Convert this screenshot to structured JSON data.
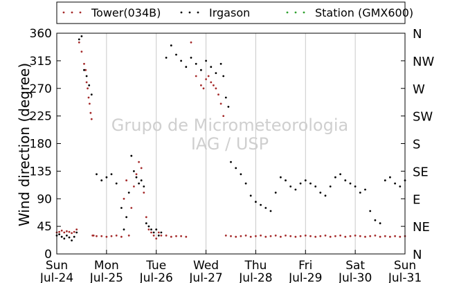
{
  "chart_data": {
    "type": "scatter",
    "ylabel": "Wind direction (degree)",
    "ylim": [
      0,
      360
    ],
    "yticks": [
      0,
      45,
      90,
      135,
      180,
      225,
      270,
      315,
      360
    ],
    "right_ticks": [
      "N",
      "NE",
      "E",
      "SE",
      "S",
      "SW",
      "W",
      "NW",
      "N"
    ],
    "xlim": [
      0,
      7
    ],
    "xticks": [
      {
        "day": "Sun",
        "date": "Jul-24"
      },
      {
        "day": "Mon",
        "date": "Jul-25"
      },
      {
        "day": "Tue",
        "date": "Jul-26"
      },
      {
        "day": "Wed",
        "date": "Jul-27"
      },
      {
        "day": "Thu",
        "date": "Jul-28"
      },
      {
        "day": "Fri",
        "date": "Jul-29"
      },
      {
        "day": "Sat",
        "date": "Jul-30"
      },
      {
        "day": "Sun",
        "date": "Jul-31"
      }
    ],
    "grid": "vertical",
    "legend_position": "top",
    "watermark": [
      "Grupo de Micrometeorologia",
      "IAG / USP"
    ],
    "series": [
      {
        "name": "Tower(034B)",
        "color": "#a52a2a",
        "x": [
          0.0,
          0.05,
          0.1,
          0.15,
          0.2,
          0.25,
          0.3,
          0.35,
          0.4,
          0.45,
          0.5,
          0.55,
          0.58,
          0.6,
          0.62,
          0.64,
          0.66,
          0.68,
          0.7,
          0.72,
          0.74,
          0.8,
          0.9,
          1.0,
          1.1,
          1.2,
          1.3,
          1.35,
          1.4,
          1.45,
          1.5,
          1.55,
          1.6,
          1.65,
          1.7,
          1.75,
          1.8,
          1.85,
          1.9,
          1.95,
          2.0,
          2.05,
          2.1,
          2.2,
          2.3,
          2.4,
          2.5,
          2.6,
          2.7,
          2.8,
          2.9,
          2.95,
          3.0,
          3.05,
          3.1,
          3.15,
          3.2,
          3.25,
          3.3,
          3.35,
          3.4,
          3.5,
          3.6,
          3.7,
          3.8,
          3.9,
          4.0,
          4.1,
          4.2,
          4.3,
          4.4,
          4.5,
          4.6,
          4.7,
          4.8,
          4.9,
          5.0,
          5.1,
          5.2,
          5.3,
          5.4,
          5.5,
          5.6,
          5.7,
          5.8,
          5.9,
          6.0,
          6.1,
          6.2,
          6.3,
          6.4,
          6.5,
          6.6,
          6.7,
          6.8,
          6.9,
          7.0
        ],
        "y": [
          35,
          36,
          38,
          35,
          37,
          36,
          34,
          36,
          40,
          345,
          330,
          310,
          300,
          280,
          270,
          255,
          245,
          230,
          220,
          30,
          30,
          29,
          29,
          28,
          29,
          30,
          28,
          90,
          120,
          30,
          75,
          110,
          130,
          150,
          140,
          100,
          60,
          40,
          35,
          30,
          25,
          35,
          30,
          30,
          28,
          29,
          29,
          28,
          345,
          290,
          275,
          270,
          285,
          290,
          280,
          275,
          270,
          260,
          245,
          225,
          30,
          29,
          28,
          29,
          30,
          28,
          29,
          30,
          28,
          29,
          30,
          28,
          30,
          29,
          28,
          29,
          30,
          29,
          28,
          29,
          30,
          28,
          29,
          30,
          28,
          29,
          30,
          29,
          28,
          29,
          30,
          28,
          29,
          28,
          29,
          28,
          29
        ]
      },
      {
        "name": "Irgason",
        "color": "#000000",
        "x": [
          0.0,
          0.05,
          0.1,
          0.15,
          0.2,
          0.25,
          0.3,
          0.35,
          0.4,
          0.45,
          0.5,
          0.55,
          0.6,
          0.65,
          0.7,
          0.8,
          0.9,
          1.0,
          1.1,
          1.2,
          1.3,
          1.35,
          1.4,
          1.45,
          1.5,
          1.55,
          1.6,
          1.65,
          1.7,
          1.75,
          1.8,
          1.85,
          1.9,
          1.95,
          2.0,
          2.05,
          2.1,
          2.2,
          2.3,
          2.4,
          2.5,
          2.6,
          2.7,
          2.8,
          2.9,
          3.0,
          3.1,
          3.2,
          3.3,
          3.35,
          3.4,
          3.45,
          3.5,
          3.6,
          3.7,
          3.8,
          3.9,
          4.0,
          4.1,
          4.2,
          4.3,
          4.4,
          4.5,
          4.6,
          4.7,
          4.8,
          4.9,
          5.0,
          5.1,
          5.2,
          5.3,
          5.4,
          5.5,
          5.6,
          5.7,
          5.8,
          5.9,
          6.0,
          6.1,
          6.2,
          6.3,
          6.4,
          6.5,
          6.6,
          6.7,
          6.8,
          6.9,
          7.0
        ],
        "y": [
          30,
          32,
          28,
          25,
          30,
          27,
          22,
          28,
          35,
          350,
          355,
          300,
          290,
          275,
          260,
          130,
          120,
          125,
          130,
          115,
          75,
          40,
          60,
          100,
          160,
          135,
          125,
          115,
          120,
          110,
          50,
          45,
          40,
          35,
          40,
          30,
          35,
          320,
          340,
          325,
          315,
          305,
          320,
          310,
          300,
          315,
          305,
          295,
          310,
          290,
          255,
          240,
          150,
          140,
          130,
          115,
          95,
          85,
          80,
          75,
          70,
          100,
          125,
          120,
          110,
          105,
          115,
          120,
          115,
          110,
          100,
          95,
          110,
          125,
          130,
          120,
          115,
          110,
          100,
          105,
          70,
          55,
          50,
          120,
          125,
          115,
          110,
          120
        ]
      },
      {
        "name": "Station (GMX600)",
        "color": "#2ca02c",
        "x": [],
        "y": []
      }
    ]
  }
}
